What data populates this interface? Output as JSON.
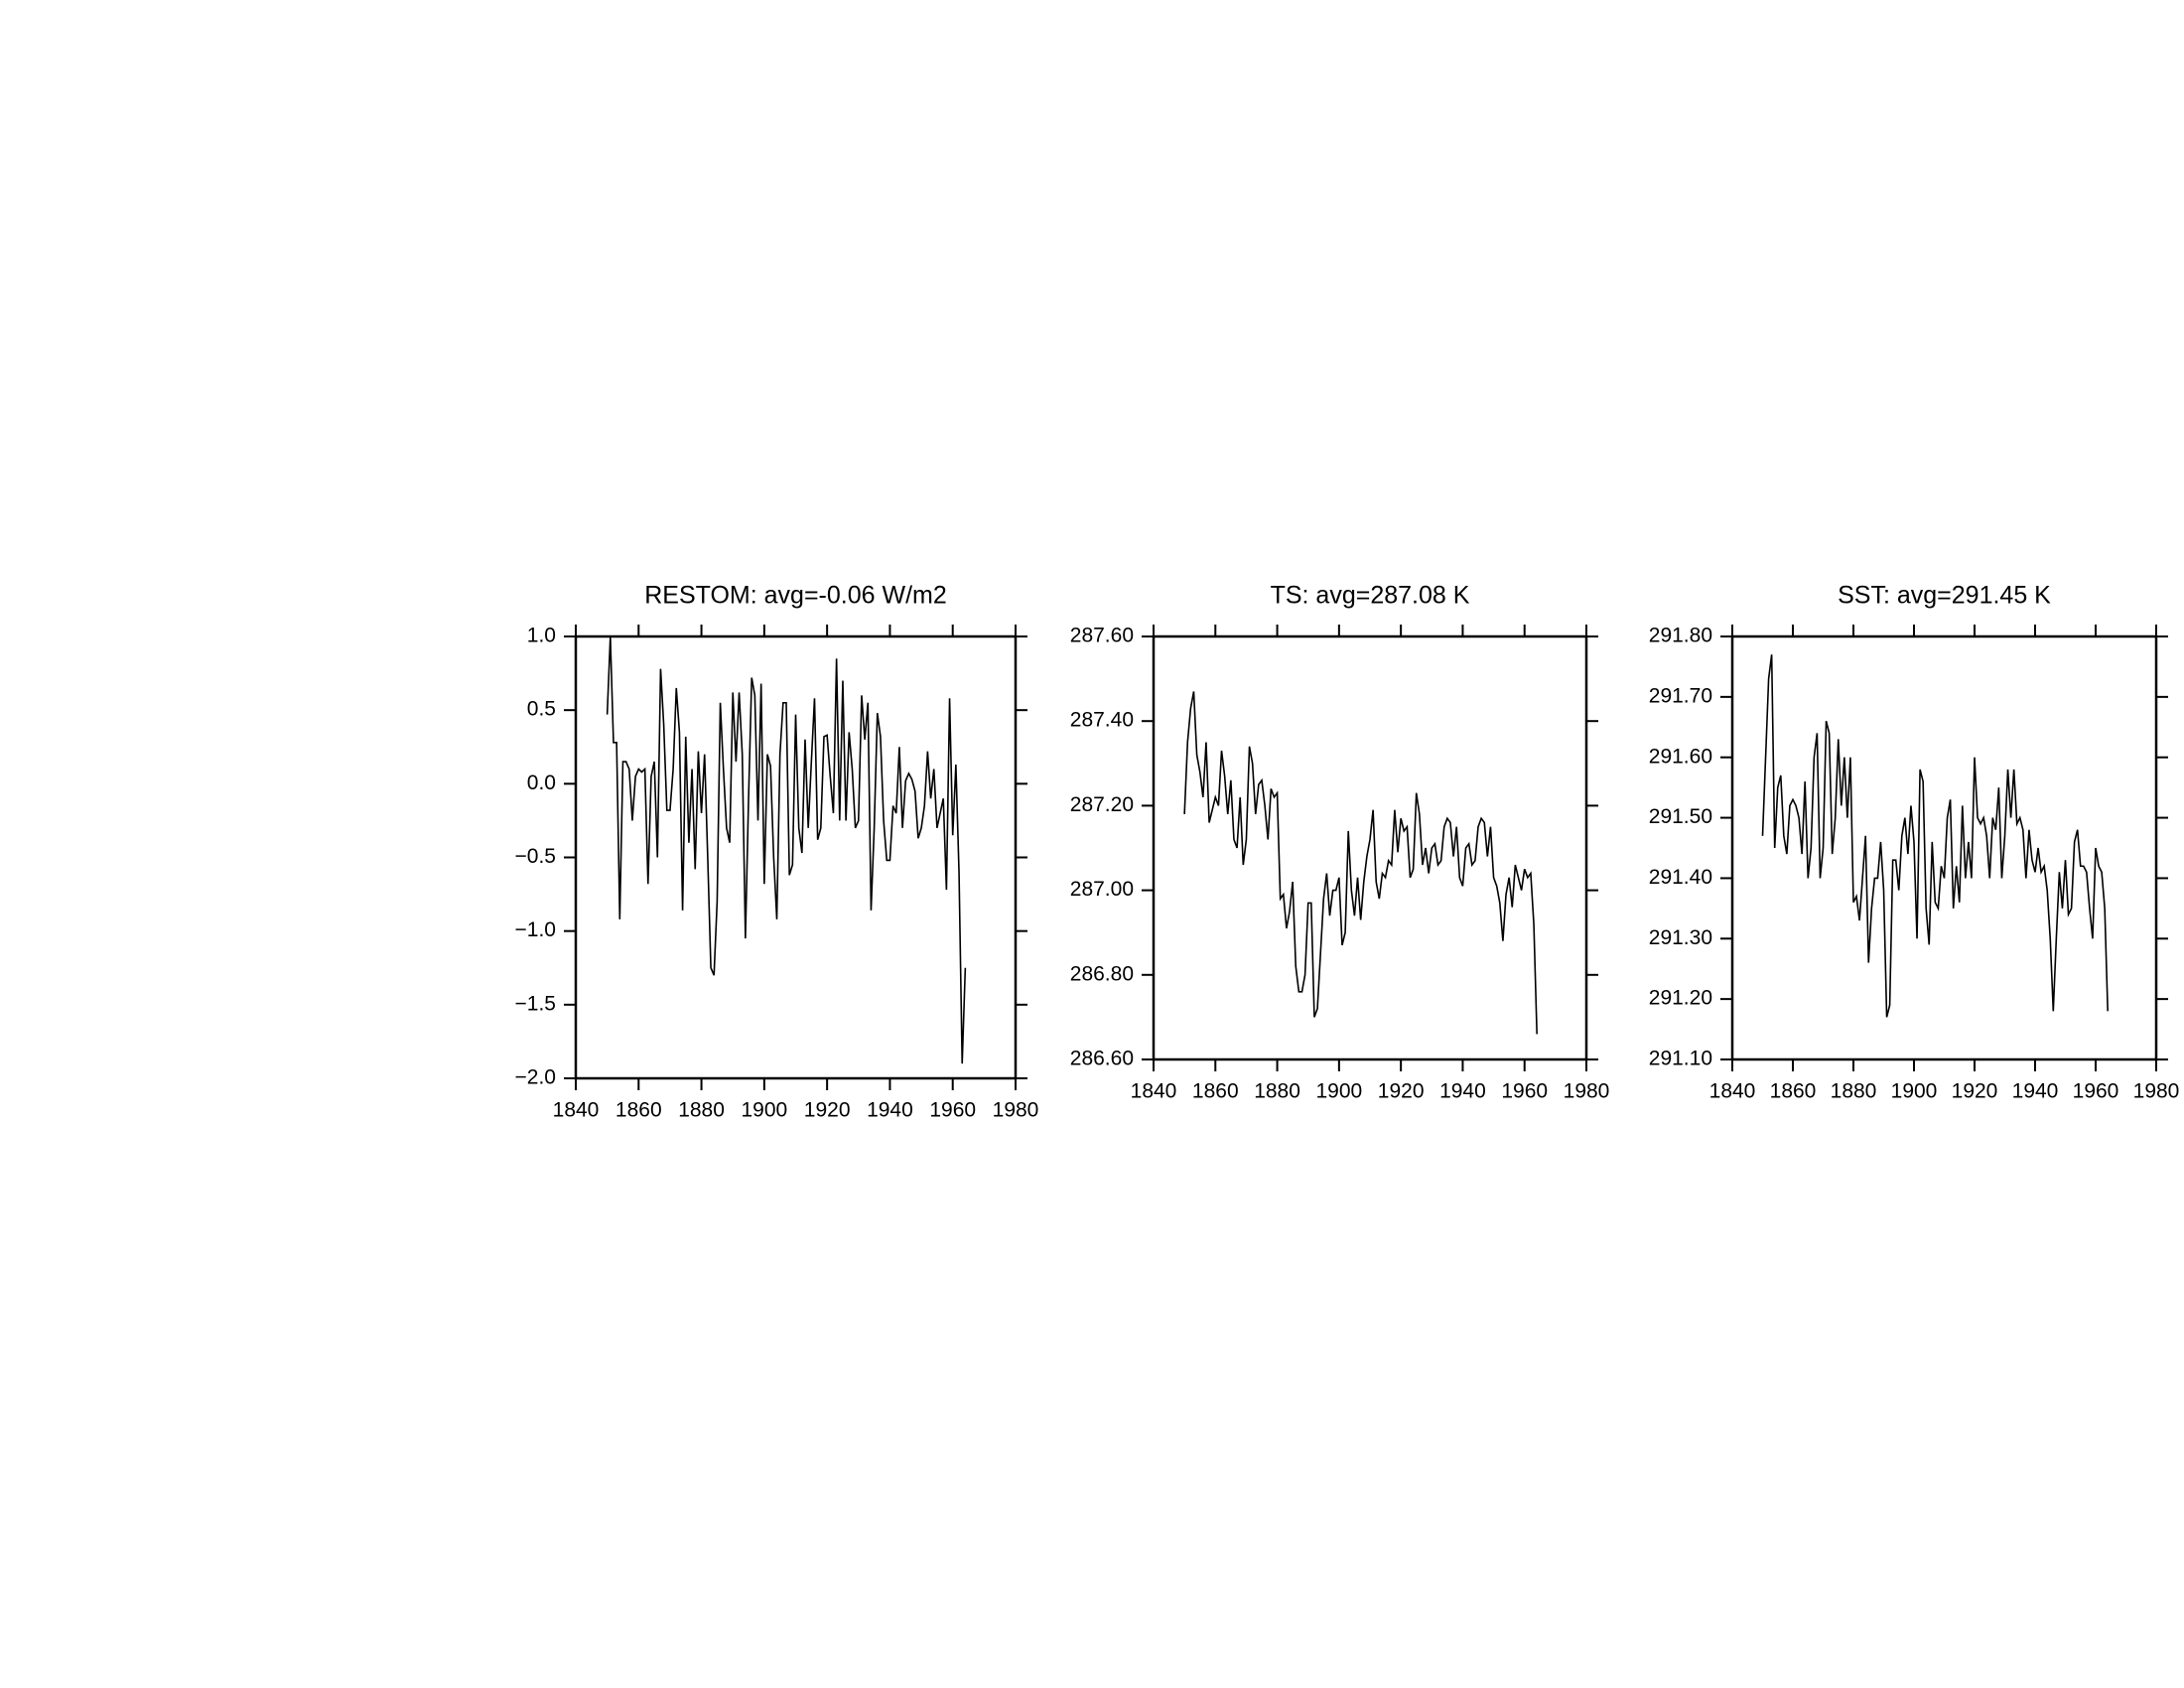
{
  "chart_data": [
    {
      "type": "line",
      "title": "RESTOM: avg=-0.06 W/m2",
      "color": "#000000",
      "x": [
        1850,
        1851,
        1852,
        1853,
        1854,
        1855,
        1856,
        1857,
        1858,
        1859,
        1860,
        1861,
        1862,
        1863,
        1864,
        1865,
        1866,
        1867,
        1868,
        1869,
        1870,
        1871,
        1872,
        1873,
        1874,
        1875,
        1876,
        1877,
        1878,
        1879,
        1880,
        1881,
        1882,
        1883,
        1884,
        1885,
        1886,
        1887,
        1888,
        1889,
        1890,
        1891,
        1892,
        1893,
        1894,
        1895,
        1896,
        1897,
        1898,
        1899,
        1900,
        1901,
        1902,
        1903,
        1904,
        1905,
        1906,
        1907,
        1908,
        1909,
        1910,
        1911,
        1912,
        1913,
        1914,
        1915,
        1916,
        1917,
        1918,
        1919,
        1920,
        1921,
        1922,
        1923,
        1924,
        1925,
        1926,
        1927,
        1928,
        1929,
        1930,
        1931,
        1932,
        1933,
        1934,
        1935,
        1936,
        1937,
        1938,
        1939,
        1940,
        1941,
        1942,
        1943,
        1944,
        1945,
        1946,
        1947,
        1948,
        1949,
        1950,
        1951,
        1952,
        1953,
        1954,
        1955,
        1956,
        1957,
        1958,
        1959,
        1960,
        1961,
        1962,
        1963,
        1964
      ],
      "values": [
        0.47,
        1.0,
        0.28,
        0.28,
        -0.92,
        0.15,
        0.15,
        0.1,
        -0.25,
        0.05,
        0.1,
        0.08,
        0.1,
        -0.68,
        0.05,
        0.15,
        -0.5,
        0.78,
        0.4,
        -0.18,
        -0.18,
        0.1,
        0.65,
        0.35,
        -0.86,
        0.32,
        -0.4,
        0.1,
        -0.58,
        0.22,
        -0.2,
        0.2,
        -0.5,
        -1.25,
        -1.3,
        -0.8,
        0.55,
        0.1,
        -0.3,
        -0.4,
        0.62,
        0.15,
        0.62,
        0.2,
        -1.05,
        -0.1,
        0.72,
        0.6,
        -0.25,
        0.68,
        -0.68,
        0.2,
        0.12,
        -0.5,
        -0.92,
        0.2,
        0.55,
        0.55,
        -0.62,
        -0.55,
        0.47,
        -0.3,
        -0.47,
        0.3,
        -0.3,
        0.15,
        0.58,
        -0.38,
        -0.3,
        0.32,
        0.33,
        0.05,
        -0.2,
        0.85,
        -0.25,
        0.7,
        -0.25,
        0.35,
        0.1,
        -0.3,
        -0.25,
        0.6,
        0.3,
        0.55,
        -0.86,
        -0.3,
        0.48,
        0.32,
        -0.25,
        -0.52,
        -0.52,
        -0.15,
        -0.2,
        0.25,
        -0.3,
        0.02,
        0.07,
        0.03,
        -0.05,
        -0.37,
        -0.3,
        -0.15,
        0.22,
        -0.1,
        0.1,
        -0.3,
        -0.2,
        -0.1,
        -0.72,
        0.58,
        -0.35,
        0.13,
        -0.6,
        -1.9,
        -1.25
      ],
      "xlim": [
        1840,
        1980
      ],
      "xticks": [
        1840,
        1860,
        1880,
        1900,
        1920,
        1940,
        1960,
        1980
      ],
      "ylim": [
        -2.0,
        1.0
      ],
      "yticks": [
        {
          "value": -2.0,
          "label": "−2.0"
        },
        {
          "value": -1.5,
          "label": "−1.5"
        },
        {
          "value": -1.0,
          "label": "−1.0"
        },
        {
          "value": -0.5,
          "label": "−0.5"
        },
        {
          "value": 0,
          "label": "0.0"
        },
        {
          "value": 0.5,
          "label": "0.5"
        },
        {
          "value": 1.0,
          "label": "1.0"
        }
      ]
    },
    {
      "type": "line",
      "title": "TS: avg=287.08 K",
      "color": "#000000",
      "x": [
        1850,
        1851,
        1852,
        1853,
        1854,
        1855,
        1856,
        1857,
        1858,
        1859,
        1860,
        1861,
        1862,
        1863,
        1864,
        1865,
        1866,
        1867,
        1868,
        1869,
        1870,
        1871,
        1872,
        1873,
        1874,
        1875,
        1876,
        1877,
        1878,
        1879,
        1880,
        1881,
        1882,
        1883,
        1884,
        1885,
        1886,
        1887,
        1888,
        1889,
        1890,
        1891,
        1892,
        1893,
        1894,
        1895,
        1896,
        1897,
        1898,
        1899,
        1900,
        1901,
        1902,
        1903,
        1904,
        1905,
        1906,
        1907,
        1908,
        1909,
        1910,
        1911,
        1912,
        1913,
        1914,
        1915,
        1916,
        1917,
        1918,
        1919,
        1920,
        1921,
        1922,
        1923,
        1924,
        1925,
        1926,
        1927,
        1928,
        1929,
        1930,
        1931,
        1932,
        1933,
        1934,
        1935,
        1936,
        1937,
        1938,
        1939,
        1940,
        1941,
        1942,
        1943,
        1944,
        1945,
        1946,
        1947,
        1948,
        1949,
        1950,
        1951,
        1952,
        1953,
        1954,
        1955,
        1956,
        1957,
        1958,
        1959,
        1960,
        1961,
        1962,
        1963,
        1964
      ],
      "values": [
        287.18,
        287.35,
        287.43,
        287.47,
        287.32,
        287.28,
        287.22,
        287.35,
        287.16,
        287.19,
        287.22,
        287.2,
        287.33,
        287.27,
        287.18,
        287.26,
        287.12,
        287.1,
        287.22,
        287.06,
        287.12,
        287.34,
        287.3,
        287.18,
        287.25,
        287.26,
        287.2,
        287.12,
        287.24,
        287.22,
        287.23,
        286.98,
        286.99,
        286.91,
        286.95,
        287.02,
        286.82,
        286.76,
        286.76,
        286.8,
        286.97,
        286.97,
        286.7,
        286.72,
        286.85,
        286.98,
        287.04,
        286.94,
        287.0,
        287.0,
        287.03,
        286.87,
        286.9,
        287.14,
        287.0,
        286.94,
        287.03,
        286.93,
        287.02,
        287.08,
        287.12,
        287.19,
        287.02,
        286.98,
        287.04,
        287.03,
        287.07,
        287.06,
        287.19,
        287.09,
        287.17,
        287.14,
        287.15,
        287.03,
        287.05,
        287.23,
        287.18,
        287.06,
        287.1,
        287.04,
        287.1,
        287.11,
        287.06,
        287.07,
        287.15,
        287.17,
        287.16,
        287.08,
        287.15,
        287.03,
        287.01,
        287.1,
        287.11,
        287.06,
        287.07,
        287.15,
        287.17,
        287.16,
        287.08,
        287.15,
        287.03,
        287.01,
        286.97,
        286.88,
        286.99,
        287.03,
        286.96,
        287.06,
        287.03,
        287.0,
        287.05,
        287.03,
        287.04,
        286.92,
        286.66
      ],
      "xlim": [
        1840,
        1980
      ],
      "xticks": [
        1840,
        1860,
        1880,
        1900,
        1920,
        1940,
        1960,
        1980
      ],
      "ylim": [
        286.6,
        287.6
      ],
      "yticks": [
        {
          "value": 286.6,
          "label": "286.60"
        },
        {
          "value": 286.8,
          "label": "286.80"
        },
        {
          "value": 287.0,
          "label": "287.00"
        },
        {
          "value": 287.2,
          "label": "287.20"
        },
        {
          "value": 287.4,
          "label": "287.40"
        },
        {
          "value": 287.6,
          "label": "287.60"
        }
      ]
    },
    {
      "type": "line",
      "title": "SST: avg=291.45 K",
      "color": "#000000",
      "x": [
        1850,
        1851,
        1852,
        1853,
        1854,
        1855,
        1856,
        1857,
        1858,
        1859,
        1860,
        1861,
        1862,
        1863,
        1864,
        1865,
        1866,
        1867,
        1868,
        1869,
        1870,
        1871,
        1872,
        1873,
        1874,
        1875,
        1876,
        1877,
        1878,
        1879,
        1880,
        1881,
        1882,
        1883,
        1884,
        1885,
        1886,
        1887,
        1888,
        1889,
        1890,
        1891,
        1892,
        1893,
        1894,
        1895,
        1896,
        1897,
        1898,
        1899,
        1900,
        1901,
        1902,
        1903,
        1904,
        1905,
        1906,
        1907,
        1908,
        1909,
        1910,
        1911,
        1912,
        1913,
        1914,
        1915,
        1916,
        1917,
        1918,
        1919,
        1920,
        1921,
        1922,
        1923,
        1924,
        1925,
        1926,
        1927,
        1928,
        1929,
        1930,
        1931,
        1932,
        1933,
        1934,
        1935,
        1936,
        1937,
        1938,
        1939,
        1940,
        1941,
        1942,
        1943,
        1944,
        1945,
        1946,
        1947,
        1948,
        1949,
        1950,
        1951,
        1952,
        1953,
        1954,
        1955,
        1956,
        1957,
        1958,
        1959,
        1960,
        1961,
        1962,
        1963,
        1964
      ],
      "values": [
        291.47,
        291.6,
        291.73,
        291.77,
        291.45,
        291.55,
        291.57,
        291.47,
        291.44,
        291.52,
        291.53,
        291.52,
        291.5,
        291.44,
        291.56,
        291.4,
        291.45,
        291.6,
        291.64,
        291.4,
        291.45,
        291.66,
        291.64,
        291.44,
        291.5,
        291.63,
        291.52,
        291.6,
        291.5,
        291.6,
        291.36,
        291.37,
        291.33,
        291.4,
        291.47,
        291.26,
        291.35,
        291.4,
        291.4,
        291.46,
        291.38,
        291.17,
        291.19,
        291.43,
        291.43,
        291.38,
        291.47,
        291.5,
        291.44,
        291.52,
        291.46,
        291.3,
        291.58,
        291.56,
        291.35,
        291.29,
        291.46,
        291.36,
        291.35,
        291.42,
        291.4,
        291.5,
        291.53,
        291.35,
        291.42,
        291.36,
        291.52,
        291.4,
        291.46,
        291.4,
        291.6,
        291.5,
        291.49,
        291.5,
        291.47,
        291.4,
        291.5,
        291.48,
        291.55,
        291.4,
        291.47,
        291.58,
        291.5,
        291.58,
        291.49,
        291.5,
        291.48,
        291.4,
        291.48,
        291.43,
        291.41,
        291.45,
        291.41,
        291.42,
        291.38,
        291.3,
        291.18,
        291.3,
        291.41,
        291.35,
        291.43,
        291.34,
        291.35,
        291.46,
        291.48,
        291.42,
        291.42,
        291.41,
        291.35,
        291.3,
        291.45,
        291.42,
        291.41,
        291.35,
        291.18
      ],
      "xlim": [
        1840,
        1980
      ],
      "xticks": [
        1840,
        1860,
        1880,
        1900,
        1920,
        1940,
        1960,
        1980
      ],
      "ylim": [
        291.1,
        291.8
      ],
      "yticks": [
        {
          "value": 291.1,
          "label": "291.10"
        },
        {
          "value": 291.2,
          "label": "291.20"
        },
        {
          "value": 291.3,
          "label": "291.30"
        },
        {
          "value": 291.4,
          "label": "291.40"
        },
        {
          "value": 291.5,
          "label": "291.50"
        },
        {
          "value": 291.6,
          "label": "291.60"
        },
        {
          "value": 291.7,
          "label": "291.70"
        },
        {
          "value": 291.8,
          "label": "291.80"
        }
      ]
    }
  ]
}
